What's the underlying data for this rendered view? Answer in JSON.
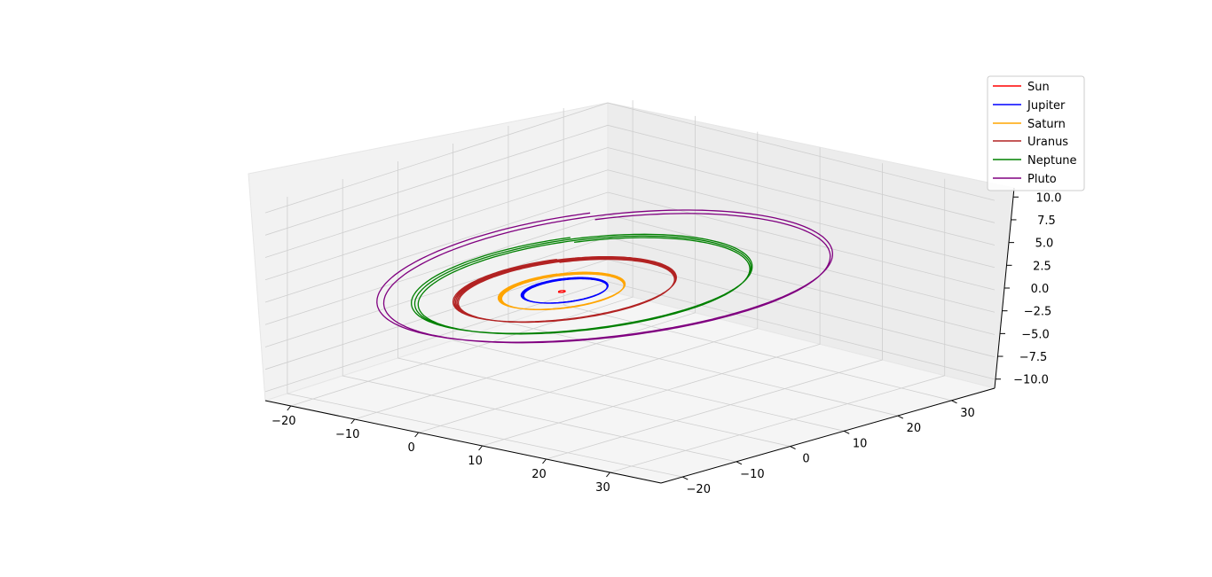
{
  "chart_data": {
    "type": "line",
    "projection": "3d",
    "title": "",
    "xlabel": "",
    "ylabel": "",
    "zlabel": "",
    "xlim": [
      -24,
      38
    ],
    "ylim": [
      -24,
      38
    ],
    "zlim": [
      -11,
      11
    ],
    "x_ticks": [
      "−20",
      "−10",
      "0",
      "10",
      "20",
      "30"
    ],
    "y_ticks": [
      "−20",
      "−10",
      "0",
      "10",
      "20",
      "30"
    ],
    "z_ticks": [
      "−10.0",
      "−7.5",
      "−5.0",
      "−2.5",
      "0.0",
      "2.5",
      "5.0",
      "7.5",
      "10.0"
    ],
    "grid": true,
    "legend_position": "upper right",
    "series": [
      {
        "name": "Sun",
        "color": "#ff0000",
        "center": [
          0.8,
          1.3
        ],
        "orbit_radius": 0.4,
        "turns": 1
      },
      {
        "name": "Jupiter",
        "color": "#0000ff",
        "center": [
          0.8,
          1.8
        ],
        "orbit_radius": 5.2,
        "turns": 18
      },
      {
        "name": "Saturn",
        "color": "#ffa500",
        "center": [
          0.6,
          1.5
        ],
        "orbit_radius": 7.6,
        "turns": 12
      },
      {
        "name": "Uranus",
        "color": "#b22222",
        "center": [
          0.5,
          2.2
        ],
        "orbit_radius": 13.4,
        "turns": 5
      },
      {
        "name": "Neptune",
        "color": "#008000",
        "center": [
          1.0,
          4.8
        ],
        "orbit_radius": 20.5,
        "turns": 3
      },
      {
        "name": "Pluto",
        "color": "#800080",
        "center": [
          1.5,
          8.5
        ],
        "orbit_radius": 27.5,
        "turns": 2
      }
    ]
  }
}
